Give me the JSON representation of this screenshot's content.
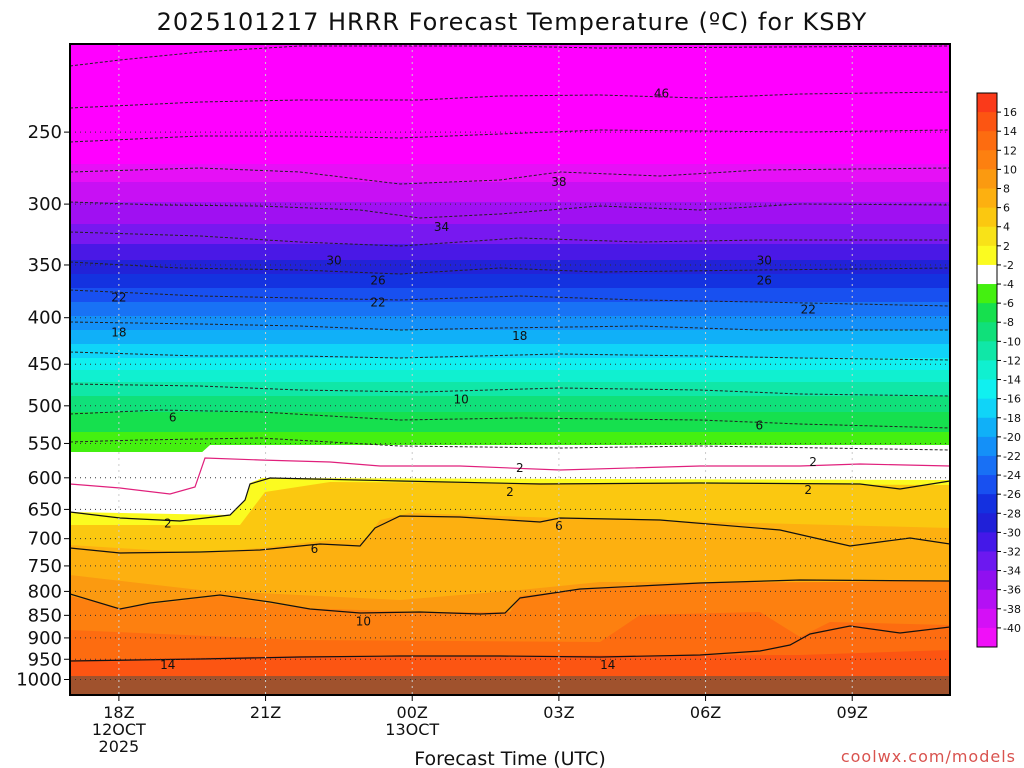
{
  "chart_data": {
    "type": "heatmap",
    "title": "2025101217 HRRR Forecast Temperature (ºC) for KSBY",
    "xlabel": "Forecast Time (UTC)",
    "ylabel": "",
    "x_ticks": [
      {
        "h": 0,
        "lines": [
          "18Z",
          "12OCT",
          "2025"
        ]
      },
      {
        "h": 3,
        "lines": [
          "21Z"
        ]
      },
      {
        "h": 6,
        "lines": [
          "00Z",
          "13OCT"
        ]
      },
      {
        "h": 9,
        "lines": [
          "03Z"
        ]
      },
      {
        "h": 12,
        "lines": [
          "06Z"
        ]
      },
      {
        "h": 15,
        "lines": [
          "09Z"
        ]
      }
    ],
    "xlim": [
      -1,
      17
    ],
    "y_ticks": [
      250,
      300,
      350,
      400,
      450,
      500,
      550,
      600,
      650,
      700,
      750,
      800,
      850,
      900,
      950,
      1000
    ],
    "ylim_hpa": [
      200,
      1040
    ],
    "surface_pressure_hpa": 1017,
    "colorbar": {
      "labels": [
        16,
        14,
        12,
        10,
        8,
        6,
        4,
        2,
        -2,
        -4,
        -6,
        -8,
        -10,
        -12,
        -14,
        -16,
        -18,
        -20,
        -22,
        -24,
        -26,
        -28,
        -30,
        -32,
        -34,
        -36,
        -38,
        -40
      ],
      "colors": [
        "#fa3a1a",
        "#fc5512",
        "#fd6c10",
        "#fd8010",
        "#fb9a10",
        "#fdb010",
        "#fbc810",
        "#f8e218",
        "#fbfb20",
        "#ffffff",
        "#44f010",
        "#16e04e",
        "#10e07a",
        "#10e7a7",
        "#10f0d0",
        "#10f0f0",
        "#10d4f8",
        "#10b0f8",
        "#1490f8",
        "#1870f5",
        "#1850f0",
        "#1430e0",
        "#2020d8",
        "#4418e8",
        "#6c18f0",
        "#9010f0",
        "#b410f4",
        "#d410f6",
        "#f010f8"
      ]
    },
    "isotherm_labels": [
      {
        "v": "46",
        "h": 11.1,
        "p": 226
      },
      {
        "v": "38",
        "h": 9.0,
        "p": 283
      },
      {
        "v": "34",
        "h": 6.6,
        "p": 317
      },
      {
        "v": "30",
        "h": 4.4,
        "p": 345
      },
      {
        "v": "30",
        "h": 13.2,
        "p": 345
      },
      {
        "v": "26",
        "h": 5.3,
        "p": 363
      },
      {
        "v": "26",
        "h": 13.2,
        "p": 363
      },
      {
        "v": "22",
        "h": 0.0,
        "p": 379
      },
      {
        "v": "22",
        "h": 5.3,
        "p": 384
      },
      {
        "v": "22",
        "h": 14.1,
        "p": 391
      },
      {
        "v": "18",
        "h": 0.0,
        "p": 414
      },
      {
        "v": "18",
        "h": 8.2,
        "p": 418
      },
      {
        "v": "10",
        "h": 7.0,
        "p": 491
      },
      {
        "v": "6",
        "h": 1.1,
        "p": 514
      },
      {
        "v": "6",
        "h": 13.1,
        "p": 524
      },
      {
        "v": "2",
        "h": 8.2,
        "p": 584
      },
      {
        "v": "2",
        "h": 14.2,
        "p": 575
      },
      {
        "v": "2",
        "h": 8.0,
        "p": 620
      },
      {
        "v": "2",
        "h": 14.1,
        "p": 617
      },
      {
        "v": "2",
        "h": 1.0,
        "p": 672
      },
      {
        "v": "6",
        "h": 4.0,
        "p": 717
      },
      {
        "v": "6",
        "h": 9.0,
        "p": 676
      },
      {
        "v": "10",
        "h": 5.0,
        "p": 861
      },
      {
        "v": "14",
        "h": 1.0,
        "p": 962
      },
      {
        "v": "14",
        "h": 10.0,
        "p": 962
      }
    ]
  },
  "credit": "coolwx.com/models"
}
